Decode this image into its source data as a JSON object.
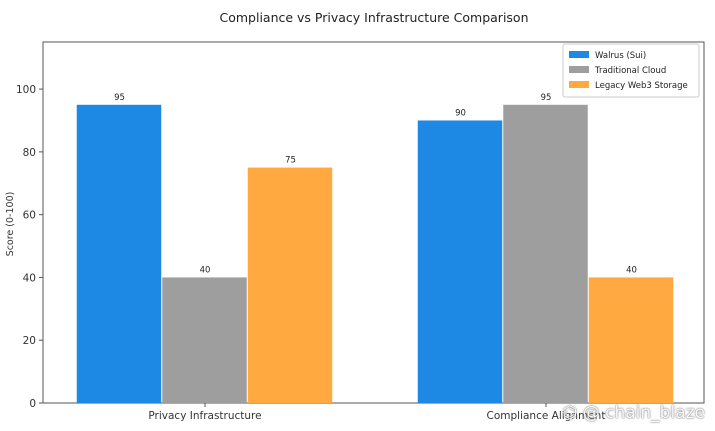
{
  "chart_data": {
    "type": "bar",
    "title": "Compliance vs Privacy Infrastructure Comparison",
    "xlabel": "",
    "ylabel": "Score (0-100)",
    "ylim": [
      0,
      115
    ],
    "yticks": [
      0,
      20,
      40,
      60,
      80,
      100
    ],
    "grid": false,
    "legend_position": "top-right",
    "categories": [
      "Privacy Infrastructure",
      "Compliance Alignment"
    ],
    "series": [
      {
        "name": "Walrus (Sui)",
        "values": [
          95,
          90
        ],
        "color": "#1e88e5"
      },
      {
        "name": "Traditional Cloud",
        "values": [
          40,
          95
        ],
        "color": "#9e9e9e"
      },
      {
        "name": "Legacy Web3 Storage",
        "values": [
          75,
          40
        ],
        "color": "#ffa940"
      }
    ]
  },
  "watermark": {
    "text": "@ chain_blaze",
    "icon": "share-icon"
  }
}
